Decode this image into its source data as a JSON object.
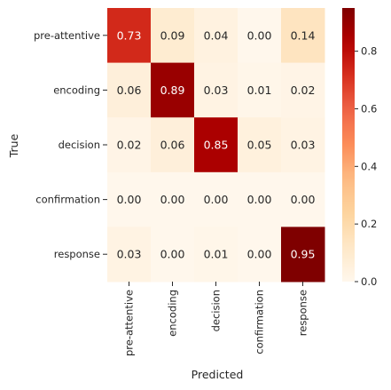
{
  "chart_data": {
    "type": "heatmap",
    "xlabel": "Predicted",
    "ylabel": "True",
    "x_categories": [
      "pre-attentive",
      "encoding",
      "decision",
      "confirmation",
      "response"
    ],
    "y_categories": [
      "pre-attentive",
      "encoding",
      "decision",
      "confirmation",
      "response"
    ],
    "values": [
      [
        0.73,
        0.09,
        0.04,
        0.0,
        0.14
      ],
      [
        0.06,
        0.89,
        0.03,
        0.01,
        0.02
      ],
      [
        0.02,
        0.06,
        0.85,
        0.05,
        0.03
      ],
      [
        0.0,
        0.0,
        0.0,
        0.0,
        0.0
      ],
      [
        0.03,
        0.0,
        0.01,
        0.0,
        0.95
      ]
    ],
    "value_format": "0.00",
    "colormap": "OrRd",
    "colormap_stops": [
      "#fff7ec",
      "#fee8c8",
      "#fdd49e",
      "#fdbb84",
      "#fc8d59",
      "#ef6548",
      "#d7301f",
      "#b30000",
      "#7f0000"
    ],
    "vmin": 0.0,
    "vmax": 0.95,
    "colorbar_ticks": [
      "0.0",
      "0.2",
      "0.4",
      "0.6",
      "0.8"
    ]
  }
}
